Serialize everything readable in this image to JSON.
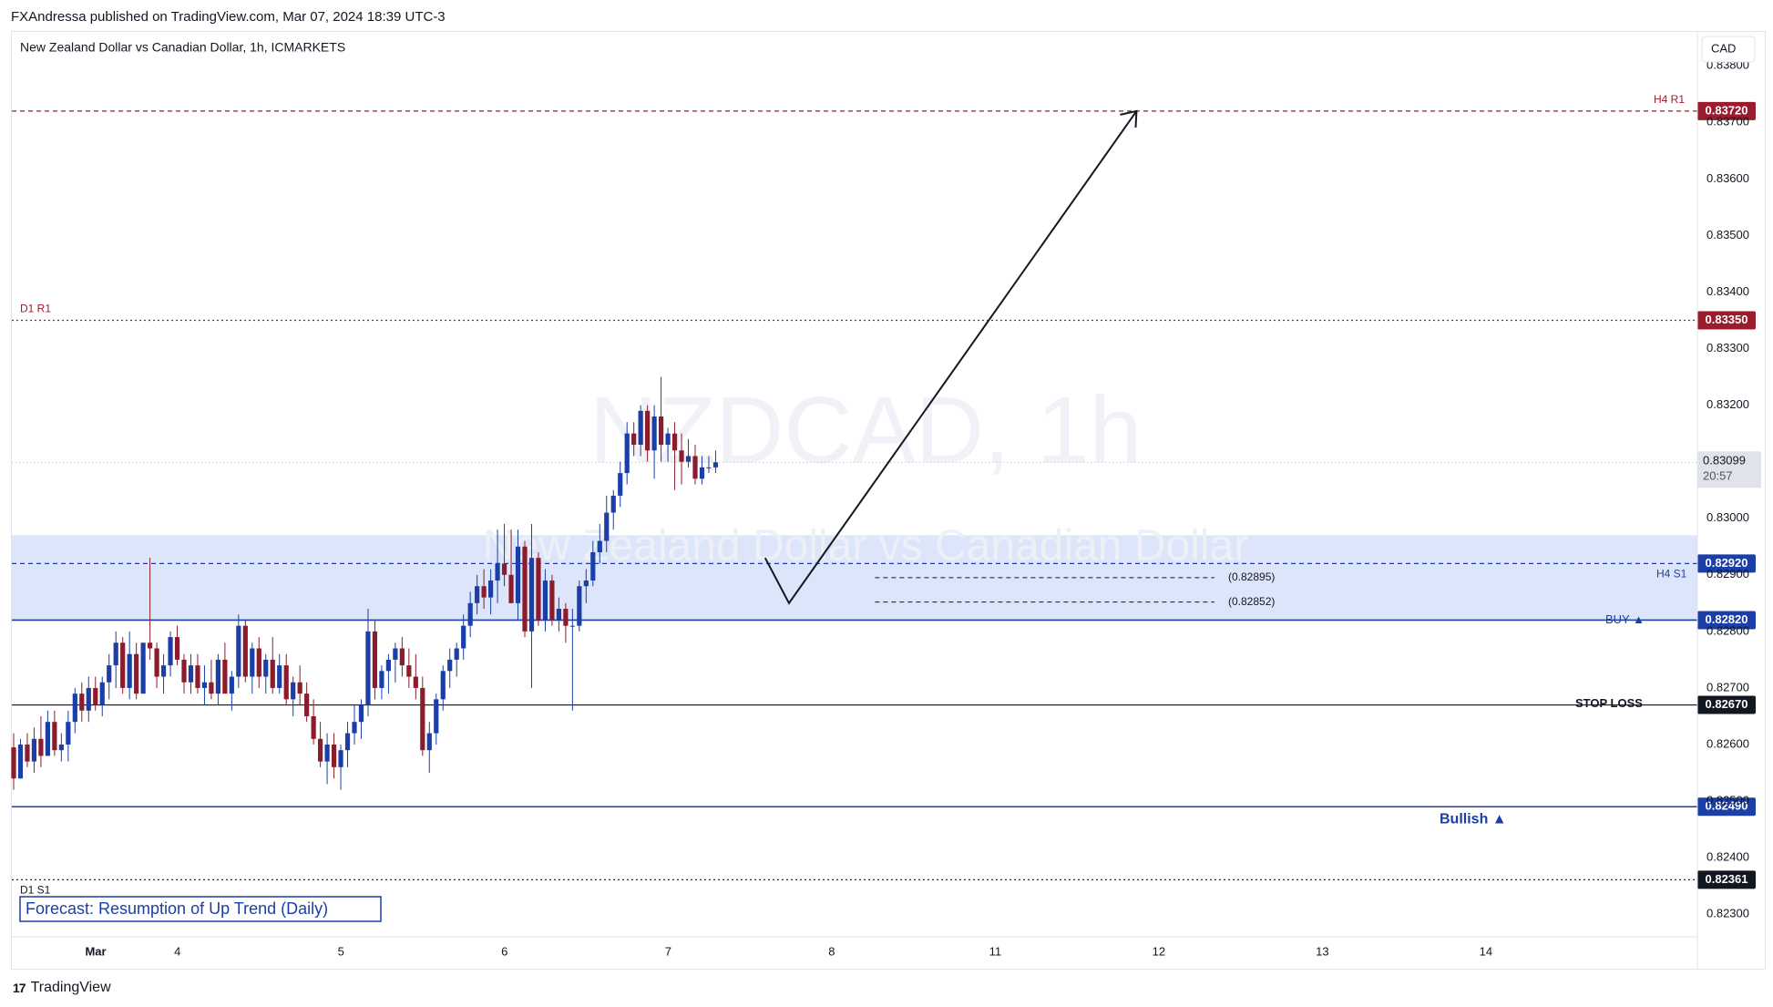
{
  "publisher": {
    "text": "FXAndressa published on TradingView.com, Mar 07, 2024 18:39 UTC-3"
  },
  "footer": {
    "brand": "TradingView",
    "logo_icon": "tradingview-logo-icon"
  },
  "chart_data": {
    "type": "candlestick",
    "symbol_title": "New Zealand Dollar vs Canadian Dollar, 1h, ICMARKETS",
    "watermark_symbol": "NZDCAD, 1h",
    "watermark_name": "New Zealand Dollar vs Canadian Dollar",
    "currency": "CAD",
    "ylim": [
      0.8226,
      0.8386
    ],
    "y_ticks": [
      "0.83800",
      "0.83700",
      "0.83600",
      "0.83500",
      "0.83400",
      "0.83300",
      "0.83200",
      "0.83000",
      "0.82900",
      "0.82800",
      "0.82700",
      "0.82600",
      "0.82500",
      "0.82400",
      "0.82300"
    ],
    "x_ticks": [
      {
        "label": "Mar",
        "bar": 0
      },
      {
        "label": "4",
        "bar": 12
      },
      {
        "label": "5",
        "bar": 36
      },
      {
        "label": "6",
        "bar": 60
      },
      {
        "label": "7",
        "bar": 84
      },
      {
        "label": "8",
        "bar": 108
      },
      {
        "label": "11",
        "bar": 132
      },
      {
        "label": "12",
        "bar": 156
      },
      {
        "label": "13",
        "bar": 180
      },
      {
        "label": "14",
        "bar": 204
      }
    ],
    "last_price": "0.83099",
    "countdown": "20:57",
    "colors": {
      "up": "#1b3fa6",
      "down": "#8c1c2b",
      "resistance": "#9b1c2e",
      "support_zone": "#dde5fa",
      "level_line": "#1b3fa6"
    },
    "levels": [
      {
        "name": "H4 R1",
        "price": 0.8372,
        "price_label": "0.83720",
        "style": "dashed",
        "color": "#9b1c2e"
      },
      {
        "name": "D1 R1",
        "price": 0.8335,
        "price_label": "0.83350",
        "style": "dotted",
        "color": "#9b1c2e"
      },
      {
        "name": "H4 S1",
        "price": 0.8292,
        "price_label": "0.82920",
        "style": "dashed",
        "color": "#1b3fa6"
      },
      {
        "name": "BUY ▲",
        "price": 0.8282,
        "price_label": "0.82820",
        "style": "solid",
        "color": "#1b3fa6"
      },
      {
        "name": "STOP LOSS",
        "price": 0.8267,
        "price_label": "0.82670",
        "style": "solid",
        "color": "#131722"
      },
      {
        "name": "Bullish ▲",
        "price": 0.8249,
        "price_label": "0.82490",
        "style": "solid",
        "color": "#1b3fa6"
      },
      {
        "name": "D1 S1",
        "price": 0.82361,
        "price_label": "0.82361",
        "style": "dotted",
        "color": "#131722"
      }
    ],
    "zone": {
      "from": 0.8282,
      "to": 0.8297
    },
    "forecast_lines": [
      {
        "label": "(0.82895)",
        "price": 0.82895,
        "from_bar": 105,
        "to_bar": 135
      },
      {
        "label": "(0.82852)",
        "price": 0.82852,
        "from_bar": 105,
        "to_bar": 135
      }
    ],
    "projection": {
      "points": [
        {
          "bar": 110,
          "price": 0.8293
        },
        {
          "bar": 113.5,
          "price": 0.8285
        },
        {
          "bar": 164.5,
          "price": 0.8372
        }
      ]
    },
    "forecast_box": "Forecast: Resumption of Up Trend (Daily)",
    "ohlc": [
      [
        0.82595,
        0.8262,
        0.8252,
        0.8254
      ],
      [
        0.8254,
        0.8261,
        0.8254,
        0.826
      ],
      [
        0.826,
        0.8262,
        0.8256,
        0.8257
      ],
      [
        0.8257,
        0.8263,
        0.8255,
        0.8261
      ],
      [
        0.8261,
        0.8265,
        0.8256,
        0.8258
      ],
      [
        0.8258,
        0.8266,
        0.8258,
        0.8264
      ],
      [
        0.8264,
        0.8266,
        0.8258,
        0.8259
      ],
      [
        0.8259,
        0.8262,
        0.8257,
        0.826
      ],
      [
        0.826,
        0.8266,
        0.8257,
        0.8264
      ],
      [
        0.8264,
        0.827,
        0.8262,
        0.8269
      ],
      [
        0.8269,
        0.8271,
        0.8264,
        0.8266
      ],
      [
        0.8266,
        0.8272,
        0.8264,
        0.827
      ],
      [
        0.827,
        0.8272,
        0.8266,
        0.8267
      ],
      [
        0.8267,
        0.8272,
        0.8265,
        0.8271
      ],
      [
        0.8271,
        0.8276,
        0.8268,
        0.8274
      ],
      [
        0.8274,
        0.828,
        0.827,
        0.8278
      ],
      [
        0.8278,
        0.8279,
        0.8269,
        0.827
      ],
      [
        0.827,
        0.828,
        0.8268,
        0.8276
      ],
      [
        0.8276,
        0.8278,
        0.8268,
        0.8269
      ],
      [
        0.8269,
        0.8278,
        0.8269,
        0.8278
      ],
      [
        0.8278,
        0.8293,
        0.8275,
        0.8277
      ],
      [
        0.8277,
        0.8278,
        0.827,
        0.8272
      ],
      [
        0.8272,
        0.8276,
        0.8269,
        0.8274
      ],
      [
        0.8274,
        0.828,
        0.8272,
        0.8279
      ],
      [
        0.8279,
        0.8281,
        0.8274,
        0.8275
      ],
      [
        0.8275,
        0.8276,
        0.8269,
        0.8271
      ],
      [
        0.8271,
        0.8276,
        0.8269,
        0.8274
      ],
      [
        0.8274,
        0.8276,
        0.8269,
        0.827
      ],
      [
        0.827,
        0.8274,
        0.8267,
        0.8271
      ],
      [
        0.8271,
        0.8275,
        0.8268,
        0.8269
      ],
      [
        0.8269,
        0.8276,
        0.8267,
        0.8275
      ],
      [
        0.8275,
        0.8278,
        0.8269,
        0.8269
      ],
      [
        0.8269,
        0.8273,
        0.8266,
        0.8272
      ],
      [
        0.8272,
        0.8283,
        0.827,
        0.8281
      ],
      [
        0.8281,
        0.8282,
        0.8271,
        0.8272
      ],
      [
        0.8272,
        0.8278,
        0.8269,
        0.8277
      ],
      [
        0.8277,
        0.8279,
        0.827,
        0.8272
      ],
      [
        0.8272,
        0.8276,
        0.8269,
        0.8275
      ],
      [
        0.8275,
        0.8279,
        0.8269,
        0.827
      ],
      [
        0.827,
        0.8276,
        0.8269,
        0.8274
      ],
      [
        0.8274,
        0.8276,
        0.8267,
        0.8268
      ],
      [
        0.8268,
        0.8272,
        0.8265,
        0.8271
      ],
      [
        0.8271,
        0.8274,
        0.8267,
        0.8269
      ],
      [
        0.8269,
        0.8271,
        0.8264,
        0.8265
      ],
      [
        0.8265,
        0.8268,
        0.826,
        0.8261
      ],
      [
        0.8261,
        0.8264,
        0.8256,
        0.8257
      ],
      [
        0.8257,
        0.8262,
        0.8253,
        0.826
      ],
      [
        0.826,
        0.8262,
        0.8254,
        0.8256
      ],
      [
        0.8256,
        0.826,
        0.8252,
        0.8259
      ],
      [
        0.8259,
        0.8264,
        0.8256,
        0.8262
      ],
      [
        0.8262,
        0.8267,
        0.826,
        0.8264
      ],
      [
        0.8264,
        0.8268,
        0.8261,
        0.8267
      ],
      [
        0.8267,
        0.8284,
        0.8265,
        0.828
      ],
      [
        0.828,
        0.8282,
        0.8268,
        0.827
      ],
      [
        0.827,
        0.8274,
        0.8268,
        0.8273
      ],
      [
        0.8273,
        0.8276,
        0.8269,
        0.8275
      ],
      [
        0.8275,
        0.8278,
        0.8271,
        0.8277
      ],
      [
        0.8277,
        0.8279,
        0.8272,
        0.8274
      ],
      [
        0.8274,
        0.8277,
        0.827,
        0.8272
      ],
      [
        0.8272,
        0.8276,
        0.8268,
        0.827
      ],
      [
        0.827,
        0.8272,
        0.8258,
        0.8259
      ],
      [
        0.8259,
        0.8264,
        0.8255,
        0.8262
      ],
      [
        0.8262,
        0.8269,
        0.826,
        0.8268
      ],
      [
        0.8268,
        0.8274,
        0.8266,
        0.8273
      ],
      [
        0.8273,
        0.8277,
        0.827,
        0.8275
      ],
      [
        0.8275,
        0.8278,
        0.8272,
        0.8277
      ],
      [
        0.8277,
        0.8283,
        0.8275,
        0.8281
      ],
      [
        0.8281,
        0.8287,
        0.8279,
        0.8285
      ],
      [
        0.8285,
        0.829,
        0.8283,
        0.8288
      ],
      [
        0.8288,
        0.8291,
        0.8284,
        0.8286
      ],
      [
        0.8286,
        0.8291,
        0.8283,
        0.8289
      ],
      [
        0.8289,
        0.8298,
        0.8285,
        0.8292
      ],
      [
        0.8292,
        0.8299,
        0.8288,
        0.829
      ],
      [
        0.829,
        0.8298,
        0.8285,
        0.8285
      ],
      [
        0.8285,
        0.8298,
        0.8282,
        0.8295
      ],
      [
        0.8295,
        0.8296,
        0.8279,
        0.828
      ],
      [
        0.828,
        0.8299,
        0.827,
        0.8293
      ],
      [
        0.8293,
        0.8294,
        0.8281,
        0.8282
      ],
      [
        0.8282,
        0.8291,
        0.828,
        0.8289
      ],
      [
        0.8289,
        0.829,
        0.8281,
        0.8282
      ],
      [
        0.8282,
        0.8286,
        0.828,
        0.8284
      ],
      [
        0.8284,
        0.8285,
        0.8278,
        0.8281
      ],
      [
        0.8281,
        0.8284,
        0.8266,
        0.8281
      ],
      [
        0.8281,
        0.8289,
        0.828,
        0.8288
      ],
      [
        0.8288,
        0.8291,
        0.8285,
        0.8289
      ],
      [
        0.8289,
        0.8296,
        0.8288,
        0.8294
      ],
      [
        0.8294,
        0.8299,
        0.8292,
        0.8296
      ],
      [
        0.8296,
        0.8304,
        0.8294,
        0.8301
      ],
      [
        0.8301,
        0.8305,
        0.8298,
        0.8304
      ],
      [
        0.8304,
        0.831,
        0.8302,
        0.8308
      ],
      [
        0.8308,
        0.8317,
        0.8306,
        0.8315
      ],
      [
        0.8315,
        0.8317,
        0.8311,
        0.8313
      ],
      [
        0.8313,
        0.832,
        0.8311,
        0.8319
      ],
      [
        0.8319,
        0.832,
        0.831,
        0.8312
      ],
      [
        0.8312,
        0.832,
        0.8307,
        0.8318
      ],
      [
        0.8318,
        0.8325,
        0.831,
        0.8313
      ],
      [
        0.8313,
        0.8316,
        0.831,
        0.8315
      ],
      [
        0.8315,
        0.8317,
        0.8305,
        0.8312
      ],
      [
        0.8312,
        0.8315,
        0.8306,
        0.831
      ],
      [
        0.831,
        0.8314,
        0.8309,
        0.8311
      ],
      [
        0.8311,
        0.8313,
        0.8306,
        0.8307
      ],
      [
        0.8307,
        0.8311,
        0.8306,
        0.8309
      ],
      [
        0.8309,
        0.8311,
        0.8308,
        0.8309
      ],
      [
        0.8309,
        0.8312,
        0.8308,
        0.83099
      ]
    ]
  }
}
